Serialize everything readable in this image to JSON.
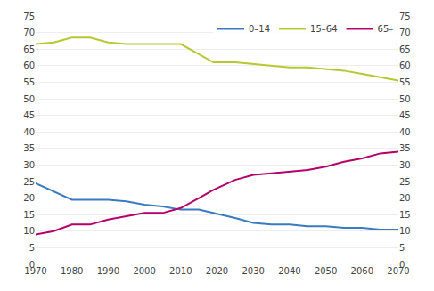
{
  "chart_data": {
    "type": "line",
    "x": [
      1970,
      1975,
      1980,
      1985,
      1990,
      1995,
      2000,
      2005,
      2010,
      2015,
      2019,
      2025,
      2030,
      2035,
      2040,
      2045,
      2050,
      2055,
      2060,
      2065,
      2070
    ],
    "series": [
      {
        "name": "0–14",
        "color": "#3a7abf",
        "values": [
          24.5,
          22.0,
          19.5,
          19.5,
          19.5,
          19.0,
          18.0,
          17.5,
          16.5,
          16.5,
          15.5,
          14.0,
          12.5,
          12.0,
          12.0,
          11.5,
          11.5,
          11.0,
          11.0,
          10.5,
          10.5
        ]
      },
      {
        "name": "15–64",
        "color": "#b8c832",
        "values": [
          66.5,
          67.0,
          68.5,
          68.5,
          67.0,
          66.5,
          66.5,
          66.5,
          66.5,
          63.5,
          61.0,
          61.0,
          60.5,
          60.0,
          59.5,
          59.5,
          59.0,
          58.5,
          57.5,
          56.5,
          55.5
        ]
      },
      {
        "name": "65–",
        "color": "#b4006b",
        "values": [
          9.0,
          10.0,
          12.0,
          12.0,
          13.5,
          14.5,
          15.5,
          15.5,
          17.0,
          20.0,
          22.5,
          25.5,
          27.0,
          27.5,
          28.0,
          28.5,
          29.5,
          31.0,
          32.0,
          33.5,
          34.0
        ]
      }
    ],
    "xlim": [
      1970,
      2070
    ],
    "xticks": [
      1970,
      1980,
      1990,
      2000,
      2010,
      2020,
      2030,
      2040,
      2050,
      2060,
      2070
    ],
    "ylim": [
      0,
      75
    ],
    "yticks": [
      0,
      5,
      10,
      15,
      20,
      25,
      30,
      35,
      40,
      45,
      50,
      55,
      60,
      65,
      70,
      75
    ],
    "y2lim": [
      0,
      75
    ],
    "y2ticks": [
      0,
      5,
      10,
      15,
      20,
      25,
      30,
      35,
      40,
      45,
      50,
      55,
      60,
      65,
      70,
      75
    ],
    "grid": true,
    "legend": "upper right"
  }
}
